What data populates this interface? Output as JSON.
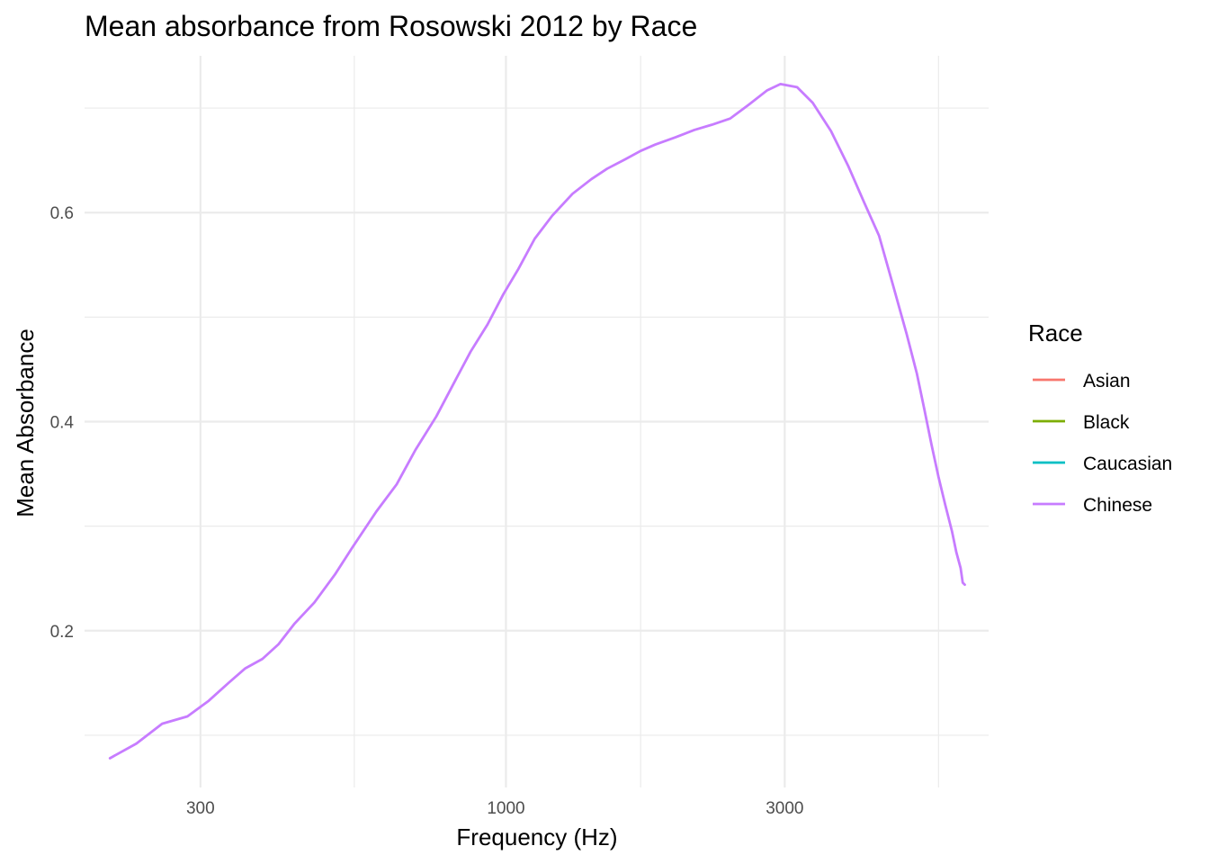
{
  "chart_data": {
    "type": "line",
    "title": "Mean absorbance from Rosowski 2012 by Race",
    "xlabel": "Frequency (Hz)",
    "ylabel": "Mean Absorbance",
    "x_scale": "log10",
    "xlim": [
      190,
      6700
    ],
    "ylim": [
      0.05,
      0.75
    ],
    "x_ticks": [
      300,
      1000,
      3000
    ],
    "x_tick_labels": [
      "300",
      "1000",
      "3000"
    ],
    "x_minor_ticks": [
      550,
      1700,
      5500
    ],
    "y_ticks": [
      0.2,
      0.4,
      0.6
    ],
    "y_tick_labels": [
      "0.2",
      "0.4",
      "0.6"
    ],
    "y_minor_ticks": [
      0.1,
      0.3,
      0.5,
      0.7
    ],
    "grid": true,
    "legend": {
      "title": "Race",
      "position": "right",
      "entries": [
        "Asian",
        "Black",
        "Caucasian",
        "Chinese"
      ]
    },
    "colors": {
      "Asian": "#F8766D",
      "Black": "#7CAE00",
      "Caucasian": "#00BFC4",
      "Chinese": "#C77CFF"
    },
    "series": [
      {
        "name": "Chinese",
        "x": [
          210,
          233,
          258,
          285,
          310,
          335,
          358,
          383,
          408,
          435,
          470,
          510,
          545,
          600,
          650,
          700,
          760,
          820,
          870,
          930,
          990,
          1050,
          1120,
          1200,
          1300,
          1400,
          1490,
          1600,
          1700,
          1800,
          1950,
          2100,
          2250,
          2420,
          2600,
          2800,
          2950,
          3150,
          3350,
          3600,
          3850,
          4100,
          4350,
          4600,
          4850,
          5050,
          5200,
          5350,
          5500,
          5650,
          5800,
          5900,
          6000,
          6050,
          6100
        ],
        "y": [
          0.078,
          0.092,
          0.111,
          0.118,
          0.133,
          0.15,
          0.164,
          0.173,
          0.187,
          0.207,
          0.227,
          0.254,
          0.279,
          0.314,
          0.34,
          0.373,
          0.405,
          0.44,
          0.467,
          0.493,
          0.522,
          0.546,
          0.575,
          0.597,
          0.618,
          0.632,
          0.642,
          0.651,
          0.659,
          0.665,
          0.672,
          0.679,
          0.684,
          0.69,
          0.703,
          0.717,
          0.723,
          0.72,
          0.705,
          0.678,
          0.645,
          0.61,
          0.578,
          0.53,
          0.484,
          0.446,
          0.412,
          0.378,
          0.347,
          0.32,
          0.295,
          0.275,
          0.26,
          0.246,
          0.244
        ]
      }
    ]
  }
}
